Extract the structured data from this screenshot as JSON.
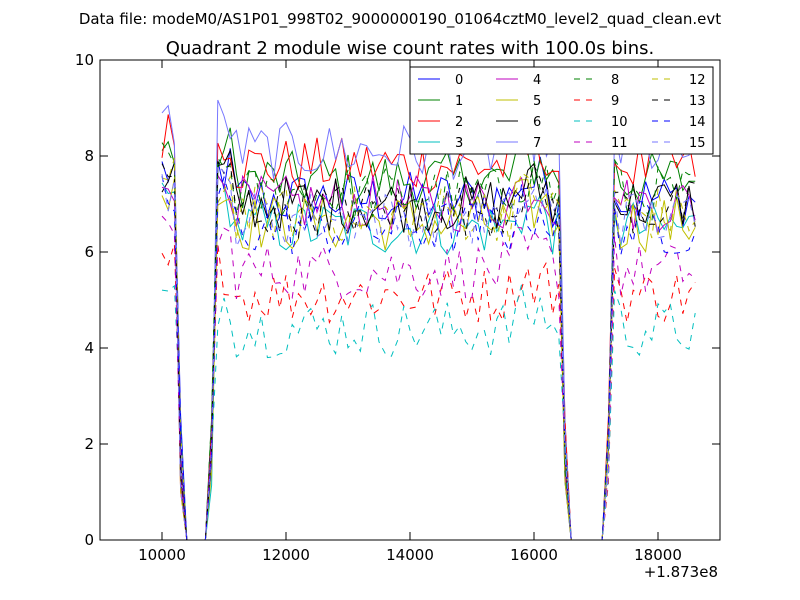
{
  "suptitle": "Data file: modeM0/AS1P01_998T02_9000000190_01064cztM0_level2_quad_clean.evt",
  "chart_data": {
    "type": "line",
    "title": "Quadrant 2 module wise count rates with 100.0s bins.",
    "xlabel": "",
    "ylabel": "",
    "x_offset_label": "+1.873e8",
    "xlim": [
      9000,
      19000
    ],
    "ylim": [
      0,
      10
    ],
    "xticks": [
      10000,
      12000,
      14000,
      16000,
      18000
    ],
    "yticks": [
      0,
      2,
      4,
      6,
      8,
      10
    ],
    "xtick_labels": [
      "10000",
      "12000",
      "14000",
      "16000",
      "18000"
    ],
    "ytick_labels": [
      "0",
      "2",
      "4",
      "6",
      "8",
      "10"
    ],
    "grid": false,
    "legend_position": "top-right",
    "legend_columns": 4,
    "x_range": [
      10000,
      18600
    ],
    "bin_width": 100,
    "gaps": [
      [
        10400,
        10700
      ],
      [
        16600,
        17100
      ]
    ],
    "series": [
      {
        "name": "0",
        "color": "#0000ff",
        "dash": "solid",
        "level": 7.1
      },
      {
        "name": "1",
        "color": "#008000",
        "dash": "solid",
        "level": 7.5
      },
      {
        "name": "2",
        "color": "#ff0000",
        "dash": "solid",
        "level": 7.8
      },
      {
        "name": "3",
        "color": "#00bfbf",
        "dash": "solid",
        "level": 6.5
      },
      {
        "name": "4",
        "color": "#bf00bf",
        "dash": "solid",
        "level": 7.0
      },
      {
        "name": "5",
        "color": "#bfbf00",
        "dash": "solid",
        "level": 6.6
      },
      {
        "name": "6",
        "color": "#000000",
        "dash": "solid",
        "level": 7.0
      },
      {
        "name": "7",
        "color": "#7777ff",
        "dash": "solid",
        "level": 8.1
      },
      {
        "name": "8",
        "color": "#008000",
        "dash": "dashed",
        "level": 7.2
      },
      {
        "name": "9",
        "color": "#ff0000",
        "dash": "dashed",
        "level": 5.1
      },
      {
        "name": "10",
        "color": "#00bfbf",
        "dash": "dashed",
        "level": 4.4
      },
      {
        "name": "11",
        "color": "#bf00bf",
        "dash": "dashed",
        "level": 5.6
      },
      {
        "name": "12",
        "color": "#bfbf00",
        "dash": "dashed",
        "level": 6.8
      },
      {
        "name": "13",
        "color": "#000000",
        "dash": "dashed",
        "level": 6.9
      },
      {
        "name": "14",
        "color": "#0000ff",
        "dash": "dashed",
        "level": 6.5
      },
      {
        "name": "15",
        "color": "#7777ff",
        "dash": "dashed",
        "level": 6.7
      }
    ]
  }
}
